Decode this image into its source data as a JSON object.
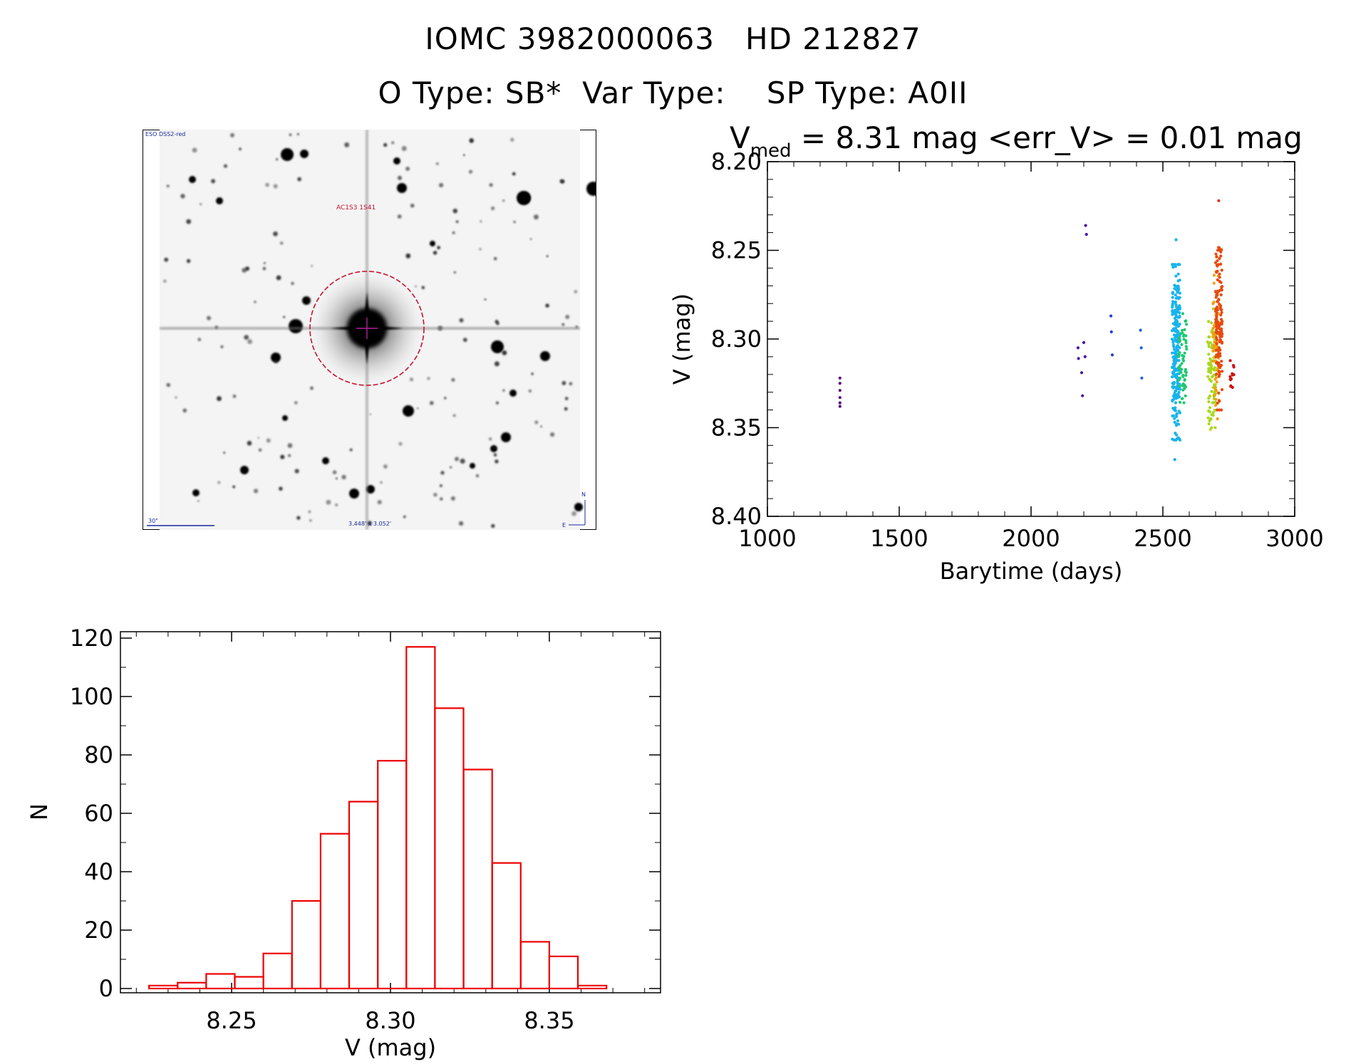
{
  "header": {
    "line1": "IOMC 3982000063   HD 212827",
    "line2": "O Type: SB*  Var Type:    SP Type: A0II"
  },
  "finder_chart": {
    "survey_label": "ESO DSS2-red",
    "target_label": "AC1S3 1S41",
    "scale_label": "30\"",
    "size_label": "3.448' x 3.052'",
    "compass_n": "N",
    "compass_e": "E",
    "circle_color": "#c8102e"
  },
  "chart_data": [
    {
      "type": "scatter",
      "title_main": "V",
      "title_sub": "med",
      "title_rest": " = 8.31 mag <err_V> = 0.01 mag",
      "xlabel": "Barytime (days)",
      "ylabel": "V (mag)",
      "xlim": [
        1000,
        3000
      ],
      "ylim": [
        8.4,
        8.2
      ],
      "xticks": [
        1000,
        1500,
        2000,
        2500,
        3000
      ],
      "xtick_labels": [
        "1000",
        "1500",
        "2000",
        "2500",
        "3000"
      ],
      "yticks": [
        8.2,
        8.25,
        8.3,
        8.35,
        8.4
      ],
      "ytick_labels": [
        "8.20",
        "8.25",
        "8.30",
        "8.35",
        "8.40"
      ],
      "colormap": "rainbow by time",
      "groups": [
        {
          "x": [
            1275,
            1275,
            1275,
            1275,
            1275,
            1275
          ],
          "y": [
            8.322,
            8.325,
            8.329,
            8.333,
            8.336,
            8.338
          ],
          "color": "#5a0a7a"
        },
        {
          "x": [
            2178,
            2180,
            2192,
            2195,
            2200,
            2205,
            2207,
            2210
          ],
          "y": [
            8.305,
            8.311,
            8.319,
            8.332,
            8.302,
            8.31,
            8.236,
            8.241
          ],
          "color": "#4a12a8"
        },
        {
          "x": [
            2303,
            2305,
            2308
          ],
          "y": [
            8.287,
            8.296,
            8.309
          ],
          "color": "#2a3ad0"
        },
        {
          "x": [
            2415,
            2418,
            2420
          ],
          "y": [
            8.295,
            8.305,
            8.322
          ],
          "color": "#2060e0"
        },
        {
          "x": [
            2550
          ],
          "y": [
            8.244
          ],
          "color": "#10b8e0"
        },
        {
          "x": [
            2545
          ],
          "y": [
            8.368
          ],
          "color": "#10a8e8"
        },
        {
          "x": [
            2712
          ],
          "y": [
            8.222
          ],
          "color": "#e83010"
        },
        {
          "x": [
            2680
          ],
          "y": [
            8.351
          ],
          "color": "#c8d820"
        }
      ],
      "clusters": [
        {
          "x_range": [
            2535,
            2565
          ],
          "y_range": [
            8.258,
            8.357
          ],
          "count": 260,
          "color": "#18b4ec"
        },
        {
          "x_range": [
            2560,
            2590
          ],
          "y_range": [
            8.285,
            8.34
          ],
          "count": 60,
          "color": "#20c870"
        },
        {
          "x_range": [
            2670,
            2700
          ],
          "y_range": [
            8.283,
            8.35
          ],
          "count": 90,
          "color": "#a8d820"
        },
        {
          "x_range": [
            2690,
            2712
          ],
          "y_range": [
            8.25,
            8.345
          ],
          "count": 60,
          "color": "#f0a010"
        },
        {
          "x_range": [
            2700,
            2725
          ],
          "y_range": [
            8.24,
            8.34
          ],
          "count": 140,
          "color": "#e84a10"
        },
        {
          "x_range": [
            2755,
            2770
          ],
          "y_range": [
            8.31,
            8.332
          ],
          "count": 14,
          "color": "#d01010"
        }
      ]
    },
    {
      "type": "bar",
      "subtype": "histogram",
      "xlabel": "V (mag)",
      "ylabel": "N",
      "xlim": [
        8.215,
        8.385
      ],
      "ylim": [
        0,
        120
      ],
      "xticks": [
        8.25,
        8.3,
        8.35
      ],
      "xtick_labels": [
        "8.25",
        "8.30",
        "8.35"
      ],
      "yticks": [
        0,
        20,
        40,
        60,
        80,
        100,
        120
      ],
      "ytick_labels": [
        "0",
        "20",
        "40",
        "60",
        "80",
        "100",
        "120"
      ],
      "bin_start": 8.224,
      "bin_width": 0.009,
      "values": [
        1,
        2,
        5,
        4,
        12,
        30,
        53,
        64,
        78,
        117,
        96,
        75,
        43,
        16,
        11,
        1
      ],
      "color": "#ee0000"
    }
  ]
}
